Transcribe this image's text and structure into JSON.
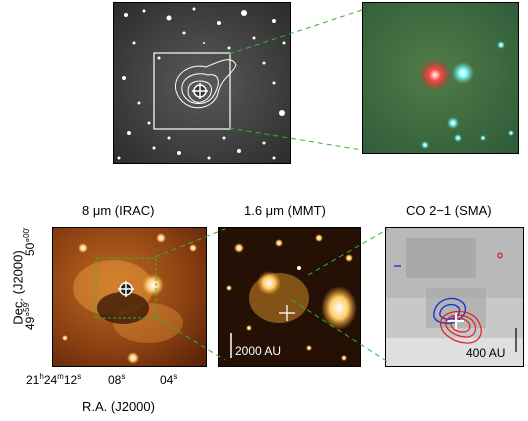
{
  "panels": {
    "irac_label": "8 μm (IRAC)",
    "mmt_label": "1.6 μm (MMT)",
    "sma_label": "CO 2−1 (SMA)"
  },
  "scale_bars": {
    "mmt": "2000 AU",
    "sma": "400 AU"
  },
  "axes": {
    "dec_label": "Dec. (J2000)",
    "ra_label": "R.A. (J2000)",
    "dec_tick_top_deg": "50°",
    "dec_tick_top_min": "00′",
    "dec_tick_bottom_deg": "49°",
    "dec_tick_bottom_min": "59′",
    "ra_tick_h": "21",
    "ra_tick_m": "24",
    "ra_tick_s1": "12",
    "ra_tick_s2": "08",
    "ra_tick_s3": "04"
  },
  "colors": {
    "leader_line": "#2db82d",
    "redshift_contour": "#e02020",
    "blueshift_contour": "#1a33d6"
  }
}
